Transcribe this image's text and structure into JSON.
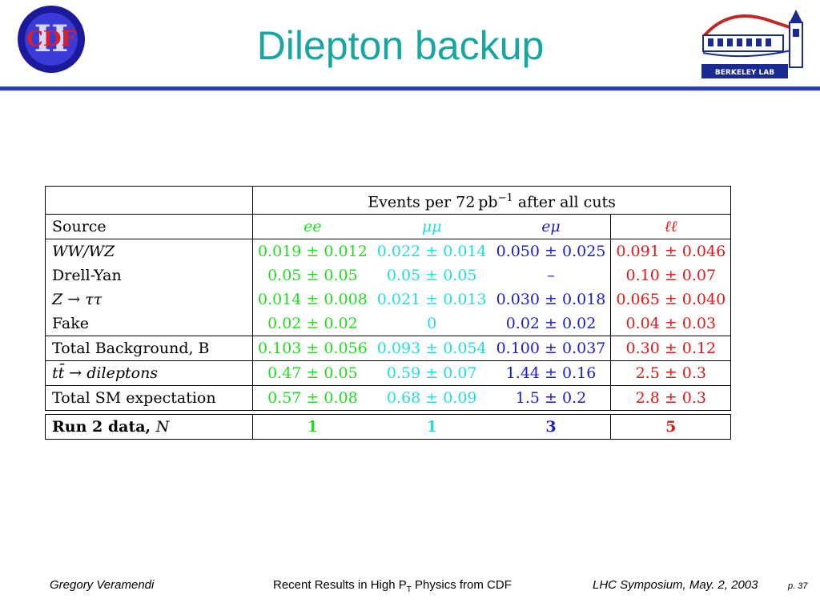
{
  "slide": {
    "title": "Dilepton backup",
    "logos": {
      "cdf_text": "CDF",
      "cdf_roman": "II",
      "lbl_text": "BERKELEY LAB"
    }
  },
  "table": {
    "header_events_prefix": "Events per 72 pb",
    "header_events_exp": "−1",
    "header_events_suffix": " after all cuts",
    "source_label": "Source",
    "channels": [
      "ee",
      "μμ",
      "eμ",
      "ℓℓ"
    ],
    "rows": [
      {
        "label": "WW/WZ",
        "values": [
          "0.019 ± 0.012",
          "0.022 ± 0.014",
          "0.050 ± 0.025",
          "0.091 ± 0.046"
        ]
      },
      {
        "label": "Drell-Yan",
        "values": [
          "0.05 ± 0.05",
          "0.05 ± 0.05",
          "–",
          "0.10 ± 0.07"
        ]
      },
      {
        "label": "Z → ττ",
        "values": [
          "0.014 ± 0.008",
          "0.021 ± 0.013",
          "0.030 ± 0.018",
          "0.065 ± 0.040"
        ]
      },
      {
        "label": "Fake",
        "values": [
          "0.02 ± 0.02",
          "0",
          "0.02 ± 0.02",
          "0.04 ± 0.03"
        ]
      },
      {
        "label": "Total Background, B",
        "values": [
          "0.103 ± 0.056",
          "0.093 ± 0.054",
          "0.100 ± 0.037",
          "0.30 ± 0.12"
        ]
      },
      {
        "label": "tt̄ → dileptons",
        "values": [
          "0.47 ± 0.05",
          "0.59 ± 0.07",
          "1.44 ± 0.16",
          "2.5 ± 0.3"
        ]
      },
      {
        "label": "Total SM expectation",
        "values": [
          "0.57 ± 0.08",
          "0.68 ± 0.09",
          "1.5 ± 0.2",
          "2.8 ± 0.3"
        ]
      }
    ],
    "data_row": {
      "label_text": "Run 2 data, ",
      "label_symbol": "N",
      "values": [
        "1",
        "1",
        "3",
        "5"
      ]
    }
  },
  "footer": {
    "author": "Gregory Veramendi",
    "talk_prefix": "Recent Results in High P",
    "talk_sub": "T",
    "talk_suffix": " Physics from CDF",
    "venue": "LHC Symposium, May. 2, 2003",
    "page": "p. 37"
  },
  "colors": {
    "title": "#1aa6a0",
    "title_bar": "#2a3fc0",
    "ee": "#22dd22",
    "mumu": "#22dddd",
    "emu": "#1c1ccc",
    "ll": "#e01818"
  }
}
